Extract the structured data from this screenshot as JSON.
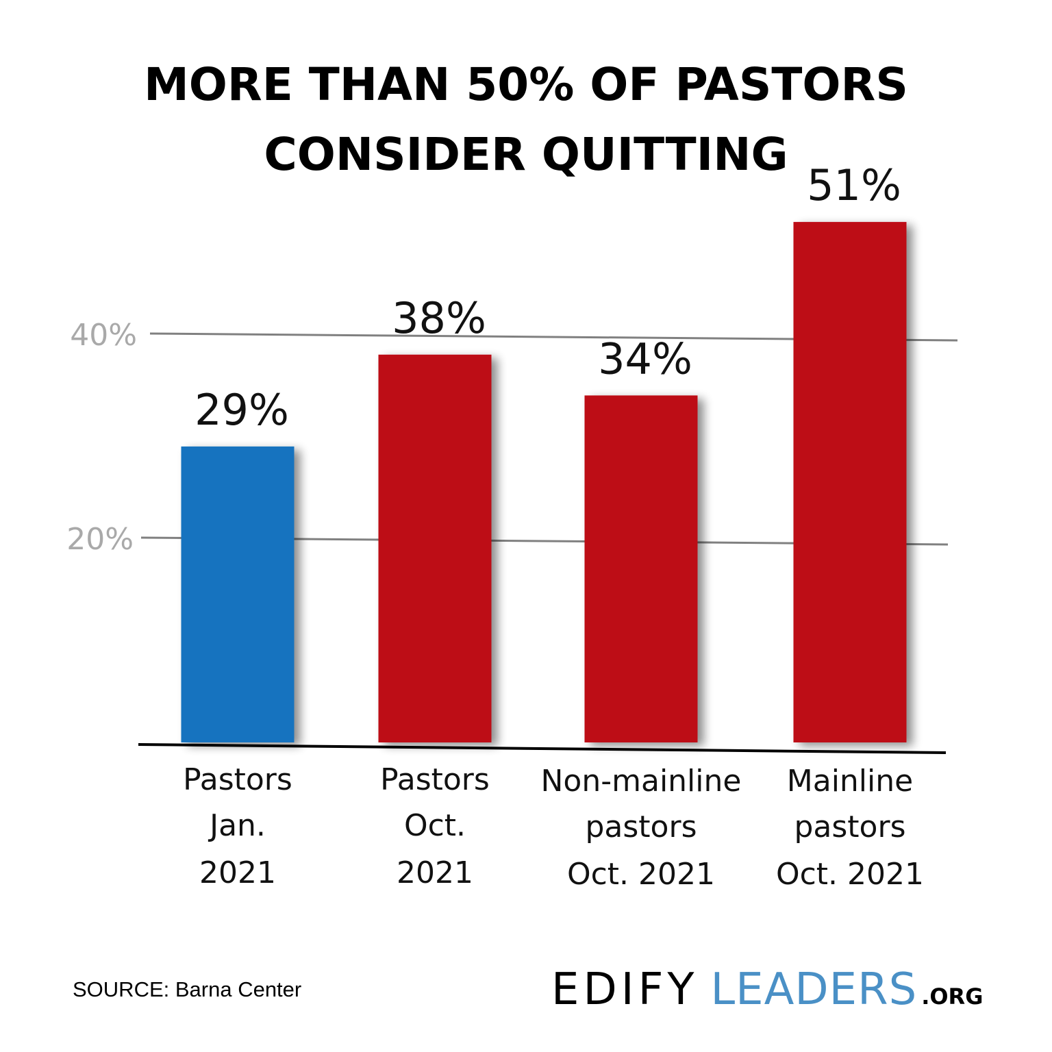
{
  "colors": {
    "blue": "#1473bf",
    "red": "#bd0816",
    "grid": "#808080",
    "axis": "#000000",
    "logo_dark": "#000000",
    "logo_blue": "#4a90c6"
  },
  "chart_data": {
    "type": "bar",
    "title": "MORE THAN 50% OF PASTORS CONSIDER QUITTING",
    "title_lines": [
      "MORE THAN 50% OF PASTORS",
      "CONSIDER QUITTING"
    ],
    "categories": [
      [
        "Pastors",
        "Jan.",
        "2021"
      ],
      [
        "Pastors",
        "Oct.",
        "2021"
      ],
      [
        "Non-mainline",
        "pastors",
        "Oct. 2021"
      ],
      [
        "Mainline",
        "pastors",
        "Oct. 2021"
      ]
    ],
    "values": [
      29,
      38,
      34,
      51
    ],
    "value_labels": [
      "29%",
      "38%",
      "34%",
      "51%"
    ],
    "bar_colors": [
      "blue",
      "red",
      "red",
      "red"
    ],
    "ylim": [
      0,
      55
    ],
    "yticks": [
      20,
      40
    ],
    "ytick_labels": [
      "20%",
      "40%"
    ],
    "grid": true,
    "xlabel": "",
    "ylabel": ""
  },
  "footer": {
    "source": "SOURCE: Barna Center",
    "logo_part1": "EDIFY",
    "logo_part2": "LEADERS",
    "logo_part3": ".ORG"
  }
}
